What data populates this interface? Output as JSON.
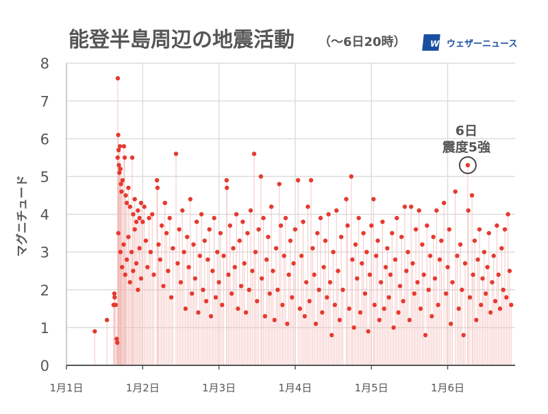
{
  "header": {
    "title": "能登半島周辺の地震活動",
    "subtitle": "（〜6日20時）",
    "logo_mark": "WN",
    "logo_text": "ウェザーニュース"
  },
  "annotation": {
    "line1": "6日",
    "line2": "震度5強"
  },
  "colors": {
    "point": "#e53a2f",
    "stem": "#f2b9b5",
    "grid": "#dddddd",
    "axis": "#555555",
    "text": "#555555",
    "logo": "#1a4fa0"
  },
  "chart_data": {
    "type": "scatter",
    "title": "能登半島周辺の地震活動（〜6日20時）",
    "xlabel": "",
    "ylabel": "マグニチュード",
    "ylim": [
      0,
      8
    ],
    "yticks": [
      "0",
      "1",
      "2",
      "3",
      "4",
      "5",
      "6",
      "7",
      "8"
    ],
    "xlim": [
      "01-01 00:00",
      "01-06 21:30"
    ],
    "xticks": [
      {
        "at": "01-01 00:00",
        "label": "1月1日"
      },
      {
        "at": "01-02 00:00",
        "label": "1月2日"
      },
      {
        "at": "01-03 00:00",
        "label": "1月3日"
      },
      {
        "at": "01-04 00:00",
        "label": "1月4日"
      },
      {
        "at": "01-05 00:00",
        "label": "1月5日"
      },
      {
        "at": "01-06 00:00",
        "label": "1月6日"
      }
    ],
    "grid": true,
    "stems": true,
    "highlight": {
      "time": "01-06 06:20",
      "magnitude": 5.3
    },
    "points": [
      [
        "01-01 08:55",
        0.9
      ],
      [
        "01-01 12:45",
        1.2
      ],
      [
        "01-01 14:50",
        1.6
      ],
      [
        "01-01 15:05",
        1.9
      ],
      [
        "01-01 15:10",
        1.8
      ],
      [
        "01-01 15:30",
        1.6
      ],
      [
        "01-01 15:50",
        0.7
      ],
      [
        "01-01 16:00",
        0.6
      ],
      [
        "01-01 16:06",
        5.5
      ],
      [
        "01-01 16:10",
        7.6
      ],
      [
        "01-01 16:18",
        6.1
      ],
      [
        "01-01 16:25",
        5.7
      ],
      [
        "01-01 16:30",
        5.3
      ],
      [
        "01-01 16:40",
        5.1
      ],
      [
        "01-01 16:50",
        5.8
      ],
      [
        "01-01 17:00",
        5.2
      ],
      [
        "01-01 17:10",
        4.8
      ],
      [
        "01-01 17:20",
        4.6
      ],
      [
        "01-01 17:40",
        4.9
      ],
      [
        "01-01 18:06",
        5.8
      ],
      [
        "01-01 18:20",
        5.5
      ],
      [
        "01-01 18:40",
        4.5
      ],
      [
        "01-01 19:00",
        4.3
      ],
      [
        "01-01 19:30",
        4.7
      ],
      [
        "01-01 20:00",
        4.2
      ],
      [
        "01-01 20:42",
        5.5
      ],
      [
        "01-01 21:00",
        4.0
      ],
      [
        "01-01 21:30",
        4.4
      ],
      [
        "01-01 22:00",
        3.8
      ],
      [
        "01-01 22:30",
        4.1
      ],
      [
        "01-01 23:00",
        3.9
      ],
      [
        "01-01 23:30",
        4.3
      ],
      [
        "01-01 16:20",
        3.5
      ],
      [
        "01-01 17:00",
        3.0
      ],
      [
        "01-01 17:30",
        2.6
      ],
      [
        "01-01 18:00",
        3.2
      ],
      [
        "01-01 18:30",
        2.4
      ],
      [
        "01-01 19:00",
        2.8
      ],
      [
        "01-01 19:30",
        3.4
      ],
      [
        "01-01 20:00",
        2.2
      ],
      [
        "01-01 20:30",
        3.0
      ],
      [
        "01-01 21:00",
        2.5
      ],
      [
        "01-01 21:30",
        3.6
      ],
      [
        "01-01 22:00",
        2.7
      ],
      [
        "01-01 22:30",
        2.0
      ],
      [
        "01-01 23:00",
        3.1
      ],
      [
        "01-01 23:30",
        2.3
      ],
      [
        "01-02 00:00",
        3.8
      ],
      [
        "01-02 00:30",
        4.2
      ],
      [
        "01-02 01:00",
        3.3
      ],
      [
        "01-02 01:30",
        2.6
      ],
      [
        "01-02 02:00",
        3.9
      ],
      [
        "01-02 02:30",
        3.0
      ],
      [
        "01-02 03:00",
        4.0
      ],
      [
        "01-02 03:30",
        2.4
      ],
      [
        "01-02 04:30",
        4.9
      ],
      [
        "01-02 04:40",
        4.7
      ],
      [
        "01-02 05:00",
        3.2
      ],
      [
        "01-02 05:30",
        2.8
      ],
      [
        "01-02 06:00",
        3.7
      ],
      [
        "01-02 06:30",
        2.1
      ],
      [
        "01-02 07:00",
        4.3
      ],
      [
        "01-02 07:30",
        3.5
      ],
      [
        "01-02 08:00",
        2.5
      ],
      [
        "01-02 08:30",
        3.9
      ],
      [
        "01-02 09:00",
        1.8
      ],
      [
        "01-02 09:30",
        3.1
      ],
      [
        "01-02 10:30",
        5.6
      ],
      [
        "01-02 11:00",
        2.7
      ],
      [
        "01-02 11:30",
        3.6
      ],
      [
        "01-02 12:00",
        2.2
      ],
      [
        "01-02 12:30",
        4.1
      ],
      [
        "01-02 13:00",
        3.0
      ],
      [
        "01-02 13:30",
        1.5
      ],
      [
        "01-02 14:00",
        3.4
      ],
      [
        "01-02 14:30",
        2.6
      ],
      [
        "01-02 15:00",
        4.4
      ],
      [
        "01-02 15:30",
        1.9
      ],
      [
        "01-02 16:00",
        3.2
      ],
      [
        "01-02 16:30",
        2.3
      ],
      [
        "01-02 17:00",
        3.8
      ],
      [
        "01-02 17:30",
        1.4
      ],
      [
        "01-02 18:00",
        2.9
      ],
      [
        "01-02 18:30",
        4.0
      ],
      [
        "01-02 19:00",
        2.0
      ],
      [
        "01-02 19:30",
        3.3
      ],
      [
        "01-02 20:00",
        1.7
      ],
      [
        "01-02 20:30",
        2.8
      ],
      [
        "01-02 21:00",
        3.6
      ],
      [
        "01-02 21:30",
        1.3
      ],
      [
        "01-02 22:00",
        2.5
      ],
      [
        "01-02 22:30",
        3.9
      ],
      [
        "01-02 23:00",
        1.8
      ],
      [
        "01-02 23:30",
        3.0
      ],
      [
        "01-03 00:00",
        2.2
      ],
      [
        "01-03 00:30",
        3.5
      ],
      [
        "01-03 01:00",
        1.6
      ],
      [
        "01-03 01:30",
        2.9
      ],
      [
        "01-03 02:25",
        4.9
      ],
      [
        "01-03 02:30",
        4.7
      ],
      [
        "01-03 03:00",
        2.4
      ],
      [
        "01-03 03:30",
        3.7
      ],
      [
        "01-03 04:00",
        1.9
      ],
      [
        "01-03 04:30",
        3.1
      ],
      [
        "01-03 05:00",
        2.6
      ],
      [
        "01-03 05:30",
        4.0
      ],
      [
        "01-03 06:00",
        1.5
      ],
      [
        "01-03 06:30",
        3.3
      ],
      [
        "01-03 07:00",
        2.1
      ],
      [
        "01-03 07:30",
        3.8
      ],
      [
        "01-03 08:00",
        2.7
      ],
      [
        "01-03 08:30",
        1.4
      ],
      [
        "01-03 09:00",
        3.5
      ],
      [
        "01-03 09:30",
        2.0
      ],
      [
        "01-03 10:00",
        4.1
      ],
      [
        "01-03 10:30",
        2.5
      ],
      [
        "01-03 11:05",
        5.6
      ],
      [
        "01-03 11:30",
        3.0
      ],
      [
        "01-03 12:00",
        1.7
      ],
      [
        "01-03 12:30",
        3.6
      ],
      [
        "01-03 13:13",
        5.0
      ],
      [
        "01-03 13:30",
        2.3
      ],
      [
        "01-03 14:00",
        3.9
      ],
      [
        "01-03 14:30",
        1.3
      ],
      [
        "01-03 15:00",
        2.8
      ],
      [
        "01-03 15:30",
        3.4
      ],
      [
        "01-03 16:00",
        1.9
      ],
      [
        "01-03 16:30",
        4.2
      ],
      [
        "01-03 17:00",
        2.5
      ],
      [
        "01-03 17:30",
        1.2
      ],
      [
        "01-03 18:00",
        3.1
      ],
      [
        "01-03 18:30",
        2.0
      ],
      [
        "01-03 19:00",
        4.8
      ],
      [
        "01-03 19:30",
        3.7
      ],
      [
        "01-03 20:00",
        1.6
      ],
      [
        "01-03 20:30",
        2.9
      ],
      [
        "01-03 21:00",
        3.9
      ],
      [
        "01-03 21:30",
        1.1
      ],
      [
        "01-03 22:00",
        2.4
      ],
      [
        "01-03 22:30",
        3.3
      ],
      [
        "01-03 23:00",
        1.8
      ],
      [
        "01-03 23:30",
        2.7
      ],
      [
        "01-04 00:00",
        3.6
      ],
      [
        "01-04 00:55",
        4.9
      ],
      [
        "01-04 01:30",
        1.5
      ],
      [
        "01-04 02:00",
        2.9
      ],
      [
        "01-04 02:30",
        3.8
      ],
      [
        "01-04 03:00",
        1.3
      ],
      [
        "01-04 03:30",
        2.2
      ],
      [
        "01-04 04:00",
        4.2
      ],
      [
        "01-04 04:30",
        1.7
      ],
      [
        "01-04 05:00",
        4.9
      ],
      [
        "01-04 05:30",
        3.1
      ],
      [
        "01-04 06:00",
        2.4
      ],
      [
        "01-04 06:30",
        1.1
      ],
      [
        "01-04 07:00",
        3.5
      ],
      [
        "01-04 07:30",
        2.0
      ],
      [
        "01-04 08:00",
        3.9
      ],
      [
        "01-04 08:30",
        1.4
      ],
      [
        "01-04 09:00",
        2.6
      ],
      [
        "01-04 09:30",
        3.3
      ],
      [
        "01-04 10:00",
        1.8
      ],
      [
        "01-04 10:30",
        4.0
      ],
      [
        "01-04 11:00",
        2.2
      ],
      [
        "01-04 11:30",
        0.8
      ],
      [
        "01-04 12:00",
        3.0
      ],
      [
        "01-04 12:30",
        1.6
      ],
      [
        "01-04 13:00",
        4.1
      ],
      [
        "01-04 13:30",
        2.5
      ],
      [
        "01-04 14:00",
        1.2
      ],
      [
        "01-04 14:30",
        3.4
      ],
      [
        "01-04 15:00",
        2.0
      ],
      [
        "01-04 16:05",
        4.4
      ],
      [
        "01-04 16:30",
        3.7
      ],
      [
        "01-04 17:00",
        1.5
      ],
      [
        "01-04 17:40",
        5.0
      ],
      [
        "01-04 18:00",
        2.8
      ],
      [
        "01-04 18:30",
        1.0
      ],
      [
        "01-04 19:00",
        3.2
      ],
      [
        "01-04 19:30",
        2.3
      ],
      [
        "01-04 20:00",
        3.9
      ],
      [
        "01-04 20:30",
        1.4
      ],
      [
        "01-04 21:00",
        2.7
      ],
      [
        "01-04 21:30",
        3.5
      ],
      [
        "01-04 22:00",
        1.9
      ],
      [
        "01-04 22:30",
        3.0
      ],
      [
        "01-04 23:00",
        0.9
      ],
      [
        "01-04 23:30",
        2.4
      ],
      [
        "01-05 00:00",
        3.7
      ],
      [
        "01-05 00:40",
        4.4
      ],
      [
        "01-05 01:00",
        1.6
      ],
      [
        "01-05 01:30",
        2.9
      ],
      [
        "01-05 02:00",
        3.3
      ],
      [
        "01-05 02:30",
        1.2
      ],
      [
        "01-05 03:00",
        2.2
      ],
      [
        "01-05 03:30",
        3.8
      ],
      [
        "01-05 04:00",
        1.5
      ],
      [
        "01-05 04:30",
        2.6
      ],
      [
        "01-05 05:00",
        3.1
      ],
      [
        "01-05 05:30",
        1.8
      ],
      [
        "01-05 06:00",
        2.4
      ],
      [
        "01-05 06:30",
        3.5
      ],
      [
        "01-05 07:00",
        1.0
      ],
      [
        "01-05 07:30",
        2.8
      ],
      [
        "01-05 08:00",
        3.9
      ],
      [
        "01-05 08:30",
        1.4
      ],
      [
        "01-05 09:00",
        2.1
      ],
      [
        "01-05 09:30",
        3.4
      ],
      [
        "01-05 10:00",
        1.7
      ],
      [
        "01-05 10:30",
        4.2
      ],
      [
        "01-05 11:00",
        2.5
      ],
      [
        "01-05 11:30",
        3.0
      ],
      [
        "01-05 12:00",
        1.2
      ],
      [
        "01-05 12:30",
        4.2
      ],
      [
        "01-05 13:00",
        2.7
      ],
      [
        "01-05 13:30",
        1.9
      ],
      [
        "01-05 14:00",
        3.6
      ],
      [
        "01-05 14:30",
        2.2
      ],
      [
        "01-05 15:00",
        4.1
      ],
      [
        "01-05 15:30",
        1.5
      ],
      [
        "01-05 16:00",
        3.2
      ],
      [
        "01-05 16:30",
        2.4
      ],
      [
        "01-05 17:00",
        0.8
      ],
      [
        "01-05 17:30",
        3.7
      ],
      [
        "01-05 18:00",
        2.0
      ],
      [
        "01-05 18:30",
        2.9
      ],
      [
        "01-05 19:00",
        1.3
      ],
      [
        "01-05 19:30",
        3.4
      ],
      [
        "01-05 20:00",
        2.3
      ],
      [
        "01-05 20:30",
        4.1
      ],
      [
        "01-05 21:00",
        1.6
      ],
      [
        "01-05 21:30",
        2.8
      ],
      [
        "01-05 22:00",
        3.3
      ],
      [
        "01-05 22:50",
        4.3
      ],
      [
        "01-05 23:30",
        1.9
      ],
      [
        "01-06 00:00",
        2.6
      ],
      [
        "01-06 00:30",
        3.6
      ],
      [
        "01-06 01:00",
        1.1
      ],
      [
        "01-06 01:30",
        2.2
      ],
      [
        "01-06 02:25",
        4.6
      ],
      [
        "01-06 03:00",
        2.9
      ],
      [
        "01-06 03:30",
        1.5
      ],
      [
        "01-06 04:00",
        3.2
      ],
      [
        "01-06 04:30",
        2.0
      ],
      [
        "01-06 05:00",
        0.8
      ],
      [
        "01-06 05:30",
        2.7
      ],
      [
        "01-06 06:20",
        5.3
      ],
      [
        "01-06 06:30",
        4.1
      ],
      [
        "01-06 07:00",
        1.8
      ],
      [
        "01-06 07:40",
        4.5
      ],
      [
        "01-06 08:00",
        2.4
      ],
      [
        "01-06 08:30",
        3.3
      ],
      [
        "01-06 09:00",
        1.2
      ],
      [
        "01-06 09:30",
        2.8
      ],
      [
        "01-06 10:00",
        3.6
      ],
      [
        "01-06 10:30",
        1.6
      ],
      [
        "01-06 11:00",
        2.3
      ],
      [
        "01-06 11:30",
        3.0
      ],
      [
        "01-06 12:00",
        1.9
      ],
      [
        "01-06 12:30",
        2.6
      ],
      [
        "01-06 13:00",
        3.5
      ],
      [
        "01-06 13:30",
        1.4
      ],
      [
        "01-06 14:00",
        2.2
      ],
      [
        "01-06 14:30",
        2.9
      ],
      [
        "01-06 15:00",
        1.7
      ],
      [
        "01-06 15:30",
        3.7
      ],
      [
        "01-06 16:00",
        2.4
      ],
      [
        "01-06 16:30",
        1.5
      ],
      [
        "01-06 17:00",
        3.1
      ],
      [
        "01-06 17:30",
        2.0
      ],
      [
        "01-06 18:00",
        3.6
      ],
      [
        "01-06 18:30",
        1.8
      ],
      [
        "01-06 19:00",
        4.0
      ],
      [
        "01-06 19:30",
        2.5
      ],
      [
        "01-06 20:00",
        1.6
      ]
    ]
  }
}
